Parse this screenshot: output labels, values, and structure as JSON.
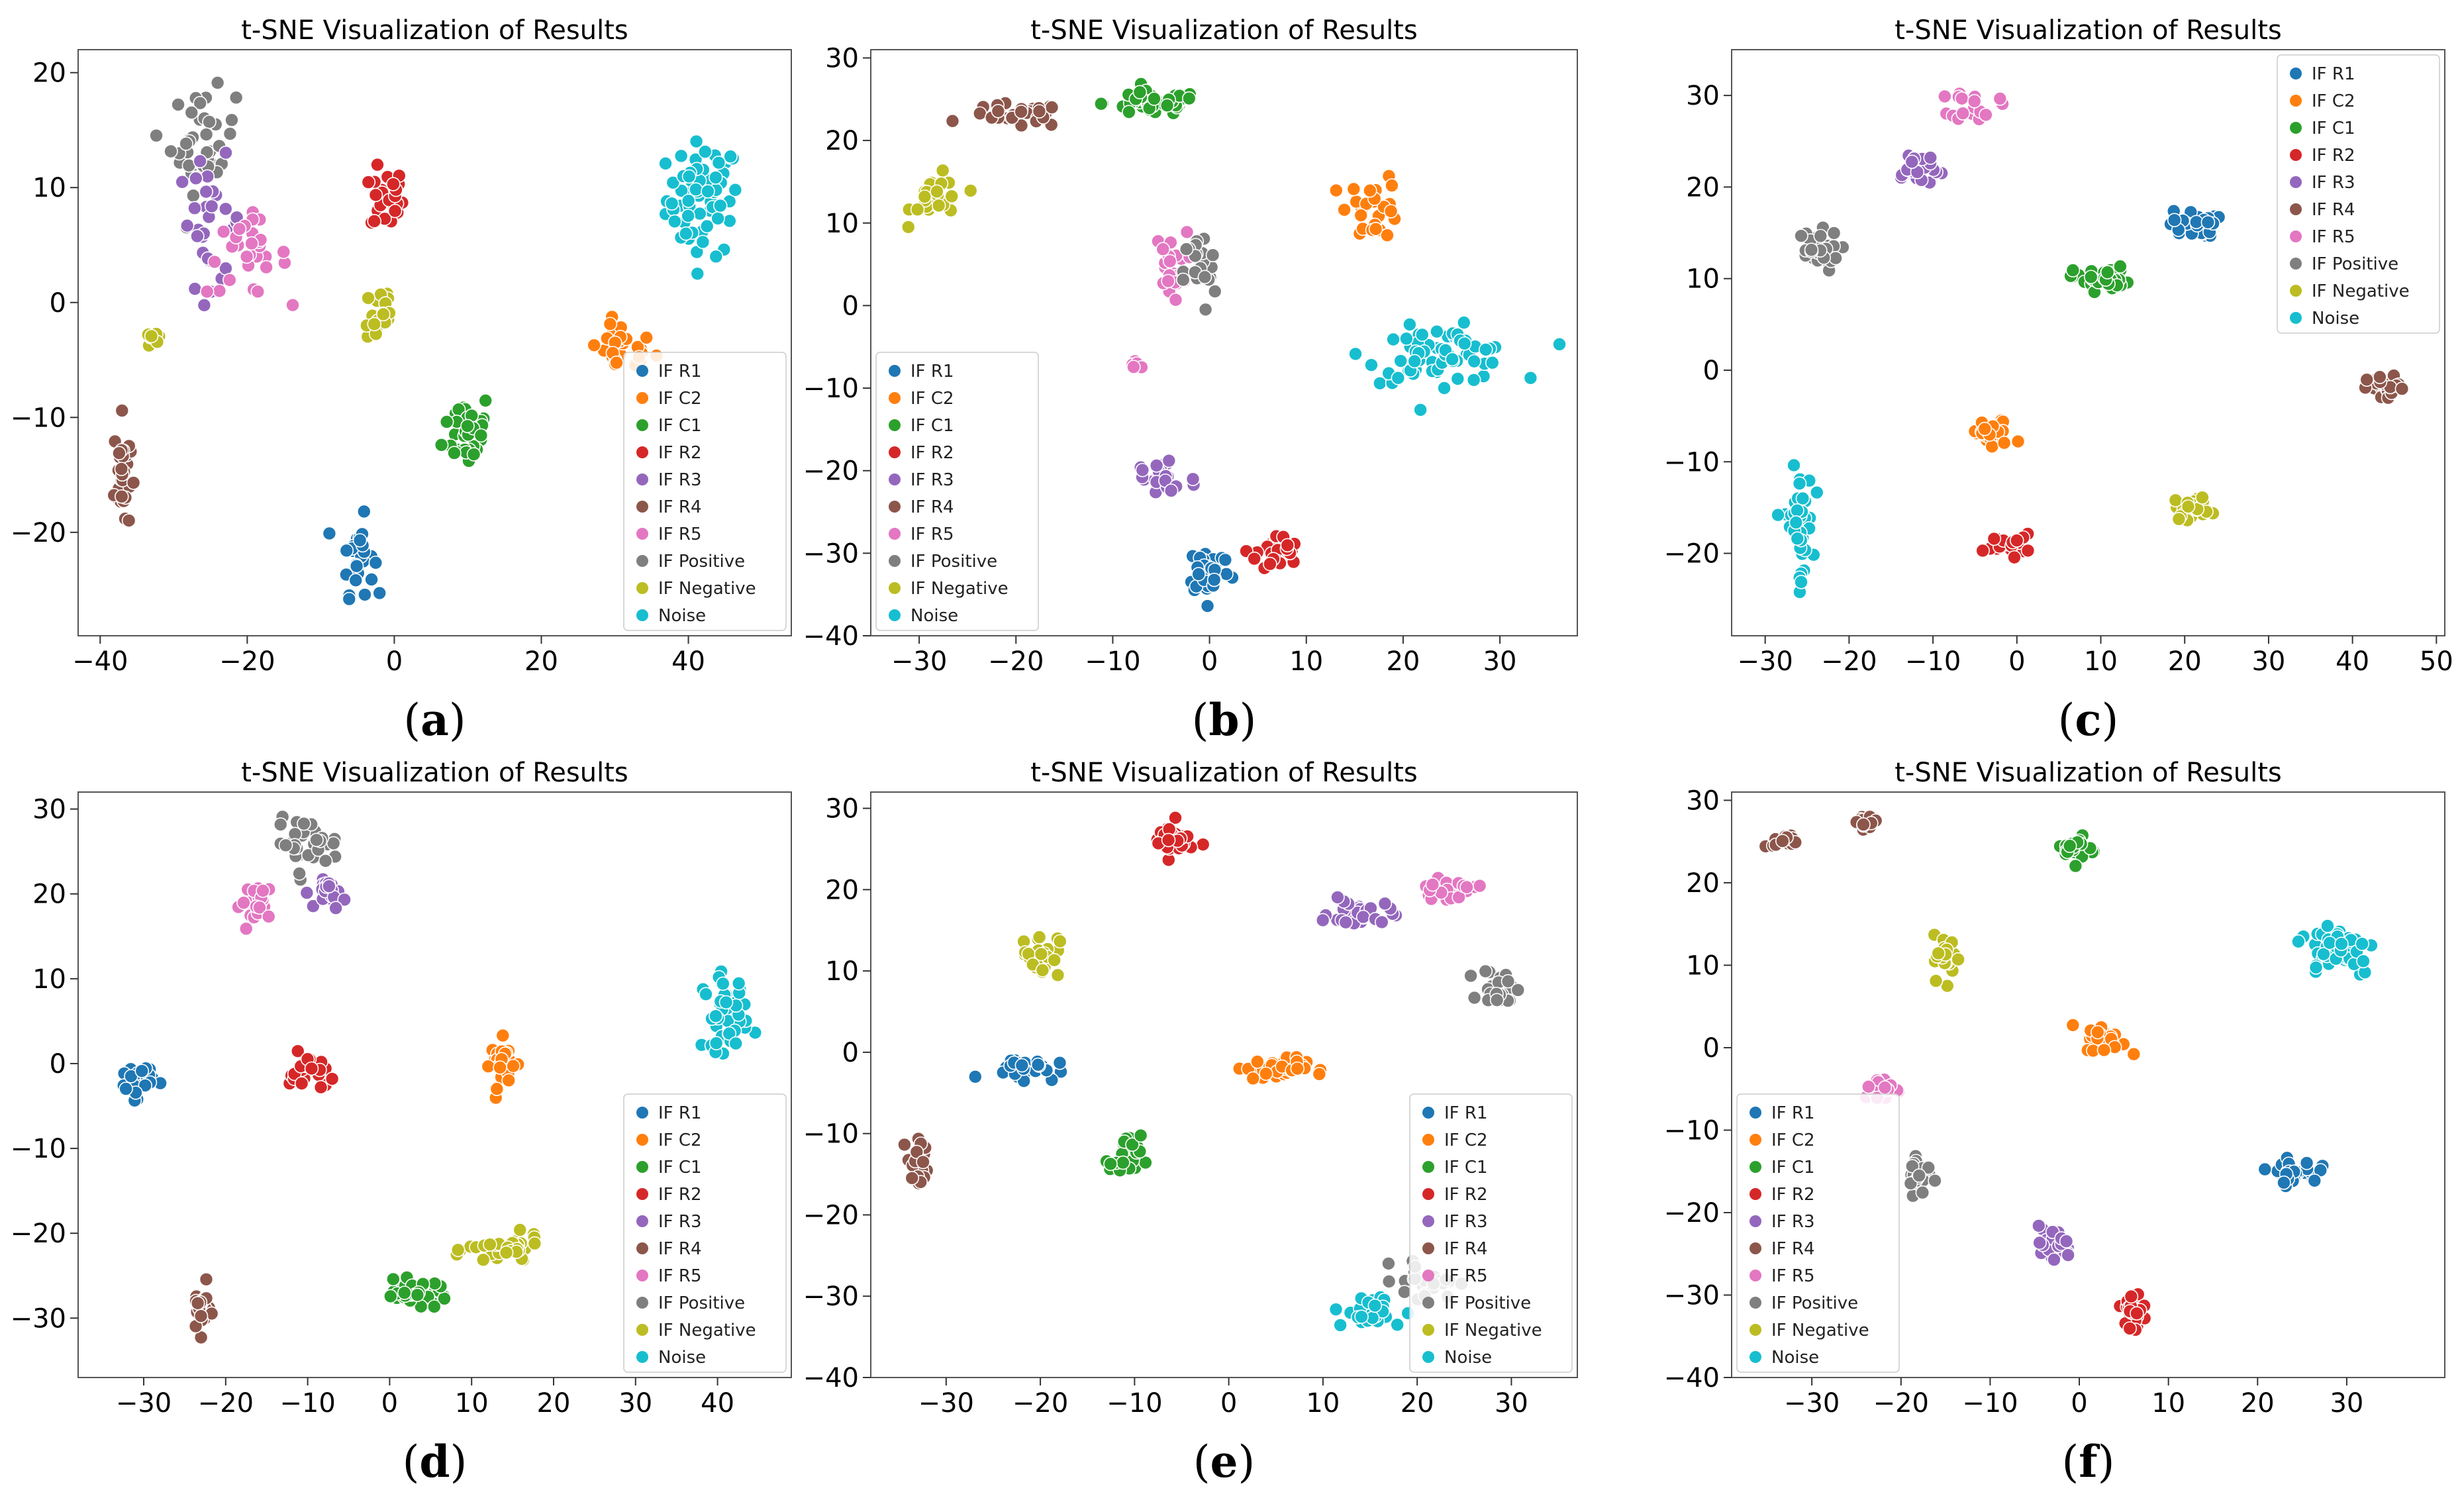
{
  "legend_entries": [
    "IF R1",
    "IF C2",
    "IF C1",
    "IF R2",
    "IF R3",
    "IF R4",
    "IF R5",
    "IF Positive",
    "IF Negative",
    "Noise"
  ],
  "colors": {
    "IF R1": "#1f77b4",
    "IF C2": "#ff7f0e",
    "IF C1": "#2ca02c",
    "IF R2": "#d62728",
    "IF R3": "#9467bd",
    "IF R4": "#8c564b",
    "IF R5": "#e377c2",
    "IF Positive": "#7f7f7f",
    "IF Negative": "#bcbd22",
    "Noise": "#17becf"
  },
  "chart_data": [
    {
      "type": "scatter",
      "panel_label": "a",
      "title": "t-SNE Visualization of Results",
      "xlim": [
        -43,
        54
      ],
      "ylim": [
        -29,
        22
      ],
      "xticks": [
        -40,
        -20,
        0,
        20,
        40
      ],
      "yticks": [
        -20,
        -10,
        0,
        10,
        20
      ],
      "legend": "bottom-right",
      "clusters": [
        {
          "series": "Noise",
          "center": [
            42,
            9
          ],
          "spread": [
            4.5,
            4.5
          ],
          "n": 70
        },
        {
          "series": "IF C2",
          "center": [
            31,
            -4
          ],
          "spread": [
            4,
            2
          ],
          "n": 28
        },
        {
          "series": "IF R2",
          "center": [
            -1,
            9
          ],
          "spread": [
            2,
            2.5
          ],
          "n": 30
        },
        {
          "series": "IF C1",
          "center": [
            10,
            -11
          ],
          "spread": [
            3,
            3
          ],
          "n": 40
        },
        {
          "series": "IF R1",
          "center": [
            -5,
            -22
          ],
          "spread": [
            2,
            3
          ],
          "n": 30
        },
        {
          "series": "IF R4",
          "center": [
            -37,
            -15
          ],
          "spread": [
            1,
            4.5
          ],
          "n": 32
        },
        {
          "series": "IF Positive",
          "center": [
            -26,
            14
          ],
          "spread": [
            4,
            4
          ],
          "n": 40
        },
        {
          "series": "IF R3",
          "center": [
            -25,
            7
          ],
          "spread": [
            4,
            5
          ],
          "n": 30
        },
        {
          "series": "IF R5",
          "center": [
            -20,
            4
          ],
          "spread": [
            5,
            3
          ],
          "n": 30
        },
        {
          "series": "IF Negative",
          "center": [
            -2,
            -1
          ],
          "spread": [
            2,
            3
          ],
          "n": 18
        },
        {
          "series": "IF Negative",
          "center": [
            -33,
            -3
          ],
          "spread": [
            1.5,
            1.2
          ],
          "n": 8
        }
      ]
    },
    {
      "type": "scatter",
      "panel_label": "b",
      "title": "t-SNE Visualization of Results",
      "xlim": [
        -35,
        38
      ],
      "ylim": [
        -40,
        31
      ],
      "xticks": [
        -30,
        -20,
        -10,
        0,
        10,
        20,
        30
      ],
      "yticks": [
        -40,
        -30,
        -20,
        -10,
        0,
        10,
        20,
        30
      ],
      "legend": "bottom-left",
      "clusters": [
        {
          "series": "IF C1",
          "center": [
            -6,
            24.5
          ],
          "spread": [
            4.5,
            1.3
          ],
          "n": 45
        },
        {
          "series": "IF R4",
          "center": [
            -20,
            23
          ],
          "spread": [
            4.5,
            1.3
          ],
          "n": 32
        },
        {
          "series": "IF Negative",
          "center": [
            -28,
            13
          ],
          "spread": [
            2.5,
            2.5
          ],
          "n": 26
        },
        {
          "series": "IF C2",
          "center": [
            17,
            12
          ],
          "spread": [
            2.5,
            3.5
          ],
          "n": 26
        },
        {
          "series": "Noise",
          "center": [
            24,
            -6
          ],
          "spread": [
            7,
            3
          ],
          "n": 70
        },
        {
          "series": "IF R5",
          "center": [
            -4,
            5
          ],
          "spread": [
            1.5,
            3.5
          ],
          "n": 24
        },
        {
          "series": "IF Positive",
          "center": [
            -1,
            4
          ],
          "spread": [
            1.5,
            4.5
          ],
          "n": 26
        },
        {
          "series": "IF R3",
          "center": [
            -5,
            -21
          ],
          "spread": [
            3.5,
            3
          ],
          "n": 26
        },
        {
          "series": "IF R1",
          "center": [
            0,
            -32
          ],
          "spread": [
            2,
            2.8
          ],
          "n": 38
        },
        {
          "series": "IF R2",
          "center": [
            7,
            -30
          ],
          "spread": [
            2,
            2
          ],
          "n": 30
        },
        {
          "series": "IF R5",
          "center": [
            -7.5,
            -7
          ],
          "spread": [
            0.8,
            0.6
          ],
          "n": 5
        }
      ]
    },
    {
      "type": "scatter",
      "panel_label": "c",
      "title": "t-SNE Visualization of Results",
      "xlim": [
        -34,
        51
      ],
      "ylim": [
        -29,
        35
      ],
      "xticks": [
        -30,
        -20,
        -10,
        0,
        10,
        20,
        30,
        40,
        50
      ],
      "yticks": [
        -20,
        -10,
        0,
        10,
        20,
        30
      ],
      "legend": "top-right",
      "clusters": [
        {
          "series": "IF R5",
          "center": [
            -5,
            29
          ],
          "spread": [
            2.5,
            1.5
          ],
          "n": 22
        },
        {
          "series": "IF R3",
          "center": [
            -12,
            22
          ],
          "spread": [
            3,
            2
          ],
          "n": 22
        },
        {
          "series": "IF Positive",
          "center": [
            -24,
            13
          ],
          "spread": [
            2.5,
            2
          ],
          "n": 34
        },
        {
          "series": "IF R1",
          "center": [
            21,
            16
          ],
          "spread": [
            2.5,
            1.3
          ],
          "n": 34
        },
        {
          "series": "IF C1",
          "center": [
            10,
            10
          ],
          "spread": [
            3,
            1.2
          ],
          "n": 36
        },
        {
          "series": "IF R4",
          "center": [
            44,
            -2
          ],
          "spread": [
            2,
            1.2
          ],
          "n": 24
        },
        {
          "series": "IF C2",
          "center": [
            -3,
            -7
          ],
          "spread": [
            2.5,
            1.5
          ],
          "n": 28
        },
        {
          "series": "IF R2",
          "center": [
            -1,
            -19
          ],
          "spread": [
            2.5,
            1
          ],
          "n": 24
        },
        {
          "series": "IF Negative",
          "center": [
            21,
            -15
          ],
          "spread": [
            2,
            1.2
          ],
          "n": 26
        },
        {
          "series": "Noise",
          "center": [
            -26,
            -17
          ],
          "spread": [
            1.5,
            5.5
          ],
          "n": 45
        }
      ]
    },
    {
      "type": "scatter",
      "panel_label": "d",
      "title": "t-SNE Visualization of Results",
      "xlim": [
        -38,
        49
      ],
      "ylim": [
        -37,
        32
      ],
      "xticks": [
        -30,
        -20,
        -10,
        0,
        10,
        20,
        30,
        40
      ],
      "yticks": [
        -30,
        -20,
        -10,
        0,
        10,
        20,
        30
      ],
      "legend": "bottom-right",
      "clusters": [
        {
          "series": "IF Positive",
          "center": [
            -10,
            26
          ],
          "spread": [
            3.5,
            2.5
          ],
          "n": 34
        },
        {
          "series": "IF R5",
          "center": [
            -16,
            19
          ],
          "spread": [
            2,
            2
          ],
          "n": 26
        },
        {
          "series": "IF R3",
          "center": [
            -7,
            20
          ],
          "spread": [
            1.5,
            1.5
          ],
          "n": 22
        },
        {
          "series": "Noise",
          "center": [
            41,
            6
          ],
          "spread": [
            2.5,
            4
          ],
          "n": 45
        },
        {
          "series": "IF C2",
          "center": [
            14,
            0
          ],
          "spread": [
            1.5,
            2.5
          ],
          "n": 26
        },
        {
          "series": "IF R1",
          "center": [
            -31,
            -2
          ],
          "spread": [
            2,
            1.8
          ],
          "n": 28
        },
        {
          "series": "IF R2",
          "center": [
            -10,
            -1
          ],
          "spread": [
            2,
            2
          ],
          "n": 30
        },
        {
          "series": "IF R4",
          "center": [
            -23,
            -29
          ],
          "spread": [
            1,
            2.5
          ],
          "n": 26
        },
        {
          "series": "IF C1",
          "center": [
            3,
            -27
          ],
          "spread": [
            4,
            1.2
          ],
          "n": 34
        },
        {
          "series": "IF Negative",
          "center": [
            14,
            -22
          ],
          "spread": [
            4,
            1.5
          ],
          "n": 40
        }
      ]
    },
    {
      "type": "scatter",
      "panel_label": "e",
      "title": "t-SNE Visualization of Results",
      "xlim": [
        -38,
        37
      ],
      "ylim": [
        -40,
        32
      ],
      "xticks": [
        -30,
        -20,
        -10,
        0,
        10,
        20,
        30
      ],
      "yticks": [
        -40,
        -30,
        -20,
        -10,
        0,
        10,
        20,
        30
      ],
      "legend": "bottom-right",
      "clusters": [
        {
          "series": "IF R2",
          "center": [
            -6,
            26
          ],
          "spread": [
            2,
            2
          ],
          "n": 34
        },
        {
          "series": "IF R3",
          "center": [
            14,
            17
          ],
          "spread": [
            3,
            1.5
          ],
          "n": 30
        },
        {
          "series": "IF R5",
          "center": [
            23,
            20
          ],
          "spread": [
            3,
            1
          ],
          "n": 24
        },
        {
          "series": "IF Positive",
          "center": [
            29,
            8
          ],
          "spread": [
            2,
            2
          ],
          "n": 30
        },
        {
          "series": "IF Negative",
          "center": [
            -20,
            12
          ],
          "spread": [
            1.8,
            2.5
          ],
          "n": 30
        },
        {
          "series": "IF R1",
          "center": [
            -22,
            -2
          ],
          "spread": [
            3.5,
            1.2
          ],
          "n": 34
        },
        {
          "series": "IF C2",
          "center": [
            5,
            -2
          ],
          "spread": [
            3,
            1.2
          ],
          "n": 38
        },
        {
          "series": "IF C1",
          "center": [
            -11,
            -13
          ],
          "spread": [
            1.5,
            2.5
          ],
          "n": 30
        },
        {
          "series": "IF R4",
          "center": [
            -33,
            -14
          ],
          "spread": [
            1,
            3
          ],
          "n": 20
        },
        {
          "series": "Noise",
          "center": [
            15,
            -32
          ],
          "spread": [
            3.5,
            2
          ],
          "n": 28
        },
        {
          "series": "IF Positive",
          "center": [
            21,
            -28
          ],
          "spread": [
            3,
            2
          ],
          "n": 26
        }
      ]
    },
    {
      "type": "scatter",
      "panel_label": "f",
      "title": "t-SNE Visualization of Results",
      "xlim": [
        -39,
        41
      ],
      "ylim": [
        -40,
        31
      ],
      "xticks": [
        -30,
        -20,
        -10,
        0,
        10,
        20,
        30
      ],
      "yticks": [
        -40,
        -30,
        -20,
        -10,
        0,
        10,
        20,
        30
      ],
      "legend": "bottom-left",
      "clusters": [
        {
          "series": "IF R4",
          "center": [
            -33,
            25
          ],
          "spread": [
            1.2,
            0.7
          ],
          "n": 18
        },
        {
          "series": "IF R4",
          "center": [
            -24,
            27.5
          ],
          "spread": [
            1.2,
            0.8
          ],
          "n": 18
        },
        {
          "series": "IF C1",
          "center": [
            0,
            24
          ],
          "spread": [
            1.5,
            1.5
          ],
          "n": 24
        },
        {
          "series": "Noise",
          "center": [
            29,
            12
          ],
          "spread": [
            4,
            3
          ],
          "n": 60
        },
        {
          "series": "IF Negative",
          "center": [
            -15,
            11
          ],
          "spread": [
            1.2,
            2.5
          ],
          "n": 26
        },
        {
          "series": "IF C2",
          "center": [
            3,
            1
          ],
          "spread": [
            2,
            1.5
          ],
          "n": 30
        },
        {
          "series": "IF R5",
          "center": [
            -22,
            -5
          ],
          "spread": [
            2,
            1.2
          ],
          "n": 26
        },
        {
          "series": "IF Positive",
          "center": [
            -18,
            -15
          ],
          "spread": [
            1.2,
            2.5
          ],
          "n": 24
        },
        {
          "series": "IF R1",
          "center": [
            24,
            -15
          ],
          "spread": [
            2.5,
            1.2
          ],
          "n": 30
        },
        {
          "series": "IF R3",
          "center": [
            -3,
            -24
          ],
          "spread": [
            2,
            2
          ],
          "n": 24
        },
        {
          "series": "IF R2",
          "center": [
            6,
            -32
          ],
          "spread": [
            1.8,
            2.5
          ],
          "n": 28
        }
      ]
    }
  ]
}
